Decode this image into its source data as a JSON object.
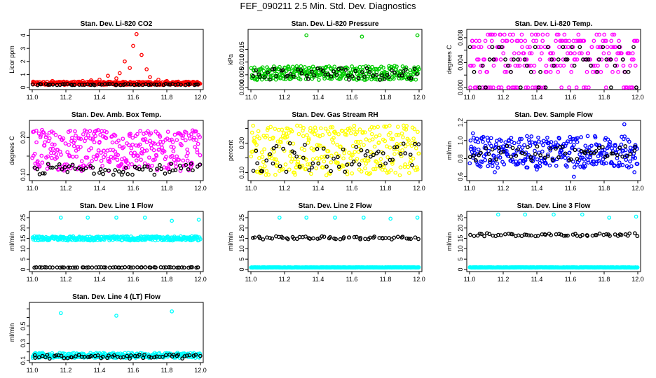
{
  "title": "FEF_090211  2.5 Min. Std. Dev. Diagnostics",
  "colors": {
    "red": "#ff0000",
    "green": "#00cc00",
    "magenta": "#ff00ff",
    "yellow": "#ffff00",
    "blue": "#0000ff",
    "cyan": "#00ffff",
    "black": "#000000"
  },
  "chart_data": [
    {
      "type": "scatter",
      "title": "Stan. Dev. Li-820 CO2",
      "ylabel": "Licor ppm",
      "xlim": [
        11.0,
        12.0
      ],
      "ylim": [
        0,
        4.3
      ],
      "xticks": [
        "11.0",
        "11.2",
        "11.4",
        "11.6",
        "11.8",
        "12.0"
      ],
      "yticks": [
        0,
        1,
        2,
        3,
        4
      ],
      "ytick_labels": [
        "0",
        "1",
        "2",
        "3",
        "4"
      ],
      "series": [
        {
          "color": "red",
          "points": [
            [
              11.02,
              0.3
            ],
            [
              11.12,
              0.5
            ],
            [
              11.18,
              0.4
            ],
            [
              11.25,
              0.45
            ],
            [
              11.3,
              0.5
            ],
            [
              11.35,
              0.55
            ],
            [
              11.4,
              0.6
            ],
            [
              11.45,
              0.9
            ],
            [
              11.5,
              0.7
            ],
            [
              11.52,
              1.1
            ],
            [
              11.55,
              2.0
            ],
            [
              11.58,
              1.5
            ],
            [
              11.6,
              3.2
            ],
            [
              11.62,
              4.1
            ],
            [
              11.65,
              2.5
            ],
            [
              11.68,
              1.4
            ],
            [
              11.7,
              0.8
            ],
            [
              11.75,
              0.6
            ],
            [
              11.8,
              0.5
            ],
            [
              11.9,
              0.4
            ],
            [
              11.98,
              0.3
            ]
          ],
          "band": [
            0.2,
            0.45
          ]
        },
        {
          "color": "black",
          "band": [
            0.18,
            0.28
          ]
        }
      ]
    },
    {
      "type": "scatter",
      "title": "Stan. Dev. Li-820 Pressure",
      "ylabel": "kPa",
      "xlim": [
        11.0,
        12.0
      ],
      "ylim": [
        0,
        0.022
      ],
      "xticks": [
        "11.0",
        "11.2",
        "11.4",
        "11.6",
        "11.8",
        "12.0"
      ],
      "yticks": [
        0,
        0.005,
        0.01,
        0.015
      ],
      "ytick_labels": [
        "0.000",
        "0.005",
        "0.010",
        "0.015"
      ],
      "series": [
        {
          "color": "green",
          "points": [
            [
              11.33,
              0.0205
            ],
            [
              11.66,
              0.02
            ],
            [
              11.99,
              0.0205
            ]
          ],
          "band": [
            0.003,
            0.0085
          ]
        },
        {
          "color": "black",
          "band": [
            0.003,
            0.008
          ]
        }
      ]
    },
    {
      "type": "scatter",
      "title": "Stan. Dev. Li-820 Temp.",
      "ylabel": "degrees C",
      "xlim": [
        11.0,
        12.0
      ],
      "ylim": [
        0,
        0.009
      ],
      "xticks": [
        "11.0",
        "11.2",
        "11.4",
        "11.6",
        "11.8",
        "12.0"
      ],
      "yticks": [
        0,
        0.002,
        0.004,
        0.006,
        0.008
      ],
      "ytick_labels": [
        "0.000",
        "",
        "0.004",
        "",
        "0.008"
      ],
      "series": [
        {
          "color": "magenta",
          "levels": [
            0,
            0.0025,
            0.0035,
            0.0045,
            0.0055,
            0.0065,
            0.0075,
            0.0085
          ]
        },
        {
          "color": "black",
          "levels": [
            0,
            0.0025,
            0.0035,
            0.0045,
            0.0065
          ]
        }
      ]
    },
    {
      "type": "scatter",
      "title": "Stan. Dev. Amb. Box Temp.",
      "ylabel": "degrees C",
      "xlim": [
        11.0,
        12.0
      ],
      "ylim": [
        0.09,
        0.24
      ],
      "xticks": [
        "11.0",
        "11.2",
        "11.4",
        "11.6",
        "11.8",
        "12.0"
      ],
      "yticks": [
        0.1,
        0.15,
        0.2
      ],
      "ytick_labels": [
        "0.10",
        "",
        "0.20"
      ],
      "series": [
        {
          "color": "magenta",
          "band": [
            0.11,
            0.22
          ]
        },
        {
          "color": "black",
          "band": [
            0.1,
            0.13
          ]
        }
      ]
    },
    {
      "type": "scatter",
      "title": "Stan. Dev. Gas Stream RH",
      "ylabel": "percent",
      "xlim": [
        11.0,
        12.0
      ],
      "ylim": [
        0.08,
        0.27
      ],
      "xticks": [
        "11.0",
        "11.2",
        "11.4",
        "11.6",
        "11.8",
        "12.0"
      ],
      "yticks": [
        0.1,
        0.15,
        0.2,
        0.25
      ],
      "ytick_labels": [
        "0.10",
        "",
        "0.20",
        ""
      ],
      "series": [
        {
          "color": "yellow",
          "band": [
            0.09,
            0.26
          ]
        },
        {
          "color": "black",
          "band": [
            0.1,
            0.2
          ]
        }
      ]
    },
    {
      "type": "scatter",
      "title": "Stan. Dev. Sample Flow",
      "ylabel": "ml/min",
      "xlim": [
        11.0,
        12.0
      ],
      "ylim": [
        0.58,
        1.2
      ],
      "xticks": [
        "11.0",
        "11.2",
        "11.4",
        "11.6",
        "11.8",
        "12.0"
      ],
      "yticks": [
        0.6,
        0.8,
        1.0,
        1.2
      ],
      "ytick_labels": [
        "0.6",
        "0.8",
        "1.0",
        "1.2"
      ],
      "series": [
        {
          "color": "blue",
          "band": [
            0.7,
            1.05
          ],
          "points": [
            [
              11.02,
              1.08
            ],
            [
              11.15,
              0.65
            ],
            [
              11.4,
              0.68
            ],
            [
              11.62,
              0.6
            ],
            [
              11.68,
              0.7
            ],
            [
              11.92,
              1.18
            ],
            [
              11.98,
              0.65
            ]
          ]
        },
        {
          "color": "black",
          "band": [
            0.78,
            0.95
          ]
        }
      ]
    },
    {
      "type": "scatter",
      "title": "Stan. Dev. Line 1 Flow",
      "ylabel": "ml/min",
      "xlim": [
        11.0,
        12.0
      ],
      "ylim": [
        0,
        27
      ],
      "xticks": [
        "11.0",
        "11.2",
        "11.4",
        "11.6",
        "11.8",
        "12.0"
      ],
      "yticks": [
        0,
        5,
        10,
        15,
        20,
        25
      ],
      "ytick_labels": [
        "0",
        "5",
        "10",
        "15",
        "20",
        "25"
      ],
      "series": [
        {
          "color": "cyan",
          "band": [
            14.0,
            16.0
          ],
          "points": [
            [
              11.17,
              25
            ],
            [
              11.33,
              25
            ],
            [
              11.5,
              25
            ],
            [
              11.67,
              25
            ],
            [
              11.83,
              23.5
            ],
            [
              11.99,
              24
            ]
          ]
        },
        {
          "color": "black",
          "band": [
            0.9,
            1.1
          ]
        }
      ]
    },
    {
      "type": "scatter",
      "title": "Stan. Dev. Line 2 Flow",
      "ylabel": "ml/min",
      "xlim": [
        11.0,
        12.0
      ],
      "ylim": [
        0,
        27
      ],
      "xticks": [
        "11.0",
        "11.2",
        "11.4",
        "11.6",
        "11.8",
        "12.0"
      ],
      "yticks": [
        0,
        5,
        10,
        15,
        20,
        25
      ],
      "ytick_labels": [
        "0",
        "5",
        "10",
        "15",
        "20",
        "25"
      ],
      "series": [
        {
          "color": "cyan",
          "band": [
            0.9,
            1.1
          ],
          "points": [
            [
              11.17,
              25
            ],
            [
              11.33,
              25
            ],
            [
              11.5,
              25
            ],
            [
              11.67,
              25
            ],
            [
              11.83,
              24.5
            ],
            [
              11.99,
              25
            ]
          ]
        },
        {
          "color": "black",
          "band": [
            14.5,
            16.0
          ]
        }
      ]
    },
    {
      "type": "scatter",
      "title": "Stan. Dev. Line 3 Flow",
      "ylabel": "ml/min",
      "xlim": [
        11.0,
        12.0
      ],
      "ylim": [
        0,
        27
      ],
      "xticks": [
        "11.0",
        "11.2",
        "11.4",
        "11.6",
        "11.8",
        "12.0"
      ],
      "yticks": [
        0,
        5,
        10,
        15,
        20,
        25
      ],
      "ytick_labels": [
        "0",
        "5",
        "10",
        "15",
        "20",
        "25"
      ],
      "series": [
        {
          "color": "cyan",
          "band": [
            0.9,
            1.1
          ],
          "points": [
            [
              11.17,
              26.5
            ],
            [
              11.33,
              26.5
            ],
            [
              11.5,
              26.5
            ],
            [
              11.67,
              26.5
            ],
            [
              11.83,
              25
            ],
            [
              11.99,
              25.5
            ]
          ]
        },
        {
          "color": "black",
          "band": [
            16.0,
            17.5
          ]
        }
      ]
    },
    {
      "type": "scatter",
      "title": "Stan. Dev. Line 4 (LT) Flow",
      "ylabel": "ml/min",
      "xlim": [
        11.0,
        12.0
      ],
      "ylim": [
        0.1,
        0.75
      ],
      "xticks": [
        "11.0",
        "11.2",
        "11.4",
        "11.6",
        "11.8",
        "12.0"
      ],
      "yticks": [
        0.1,
        0.2,
        0.3,
        0.4,
        0.5,
        0.6,
        0.7
      ],
      "ytick_labels": [
        "0.1",
        "",
        "0.3",
        "",
        "0.5",
        "",
        ""
      ],
      "series": [
        {
          "color": "cyan",
          "band": [
            0.13,
            0.19
          ],
          "points": [
            [
              11.17,
              0.65
            ],
            [
              11.5,
              0.62
            ],
            [
              11.83,
              0.67
            ]
          ]
        },
        {
          "color": "black",
          "band": [
            0.12,
            0.17
          ]
        }
      ]
    }
  ]
}
